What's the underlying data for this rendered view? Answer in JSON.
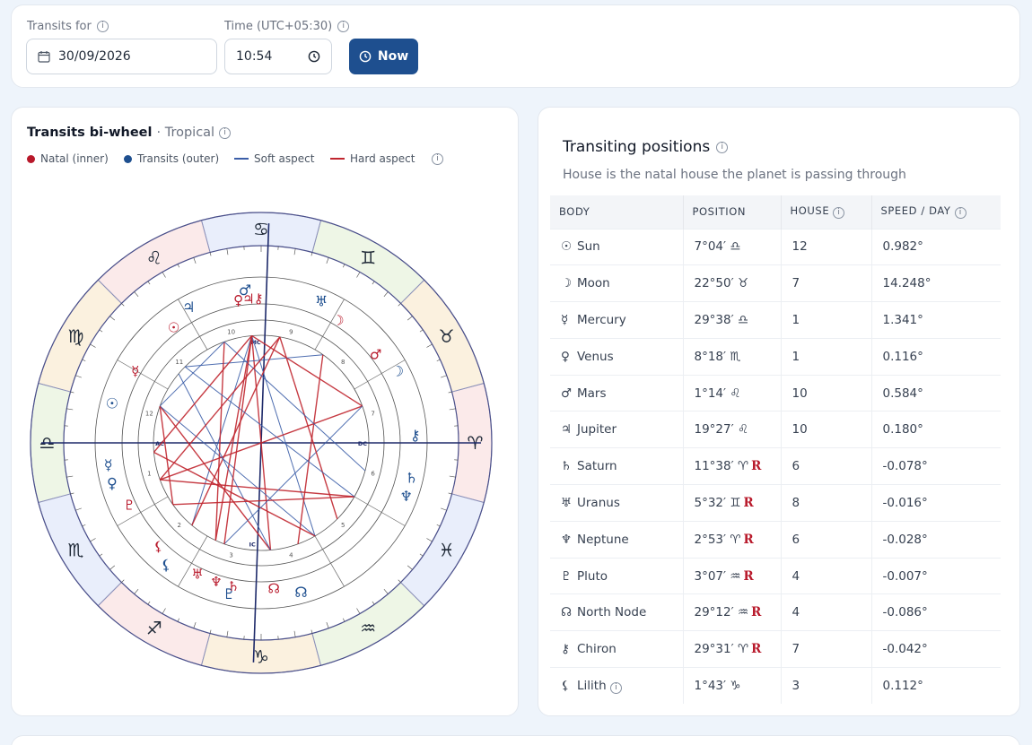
{
  "controls": {
    "transits_label": "Transits for",
    "date_value": "30/09/2026",
    "time_label": "Time (UTC+05:30)",
    "time_value": "10:54",
    "now_label": "Now"
  },
  "chart_panel": {
    "title": "Transits bi-wheel",
    "mode": "· Tropical",
    "legend": {
      "natal": "Natal (inner)",
      "transits": "Transits (outer)",
      "soft": "Soft aspect",
      "hard": "Hard aspect"
    },
    "colors": {
      "natal": "#b8182a",
      "transits": "#1e4f8f",
      "soft": "#3b5ea8",
      "hard": "#c0262f"
    },
    "angles": {
      "ac": "AC",
      "dc": "DC",
      "mc": "MC",
      "ic": "IC"
    },
    "houses": [
      "1",
      "2",
      "3",
      "4",
      "5",
      "6",
      "7",
      "8",
      "9",
      "10",
      "11",
      "12"
    ],
    "signs": [
      "♈",
      "♉",
      "♊",
      "♋",
      "♌",
      "♍",
      "♎",
      "♏",
      "♐",
      "♑",
      "♒",
      "♓"
    ]
  },
  "positions_panel": {
    "title": "Transiting positions",
    "subtitle": "House is the natal house the planet is passing through",
    "columns": [
      "BODY",
      "POSITION",
      "HOUSE",
      "SPEED / DAY"
    ],
    "rows": [
      {
        "icon": "☉",
        "body": "Sun",
        "position": "7°04′ ♎",
        "retro": "",
        "house": "12",
        "speed": "0.982°"
      },
      {
        "icon": "☽",
        "body": "Moon",
        "position": "22°50′ ♉",
        "retro": "",
        "house": "7",
        "speed": "14.248°"
      },
      {
        "icon": "☿",
        "body": "Mercury",
        "position": "29°38′ ♎",
        "retro": "",
        "house": "1",
        "speed": "1.341°"
      },
      {
        "icon": "♀",
        "body": "Venus",
        "position": "8°18′ ♏",
        "retro": "",
        "house": "1",
        "speed": "0.116°"
      },
      {
        "icon": "♂",
        "body": "Mars",
        "position": "1°14′ ♌",
        "retro": "",
        "house": "10",
        "speed": "0.584°"
      },
      {
        "icon": "♃",
        "body": "Jupiter",
        "position": "19°27′ ♌",
        "retro": "",
        "house": "10",
        "speed": "0.180°"
      },
      {
        "icon": "♄",
        "body": "Saturn",
        "position": "11°38′ ♈",
        "retro": "R",
        "house": "6",
        "speed": "-0.078°"
      },
      {
        "icon": "♅",
        "body": "Uranus",
        "position": "5°32′ ♊",
        "retro": "R",
        "house": "8",
        "speed": "-0.016°"
      },
      {
        "icon": "♆",
        "body": "Neptune",
        "position": "2°53′ ♈",
        "retro": "R",
        "house": "6",
        "speed": "-0.028°"
      },
      {
        "icon": "♇",
        "body": "Pluto",
        "position": "3°07′ ♒",
        "retro": "R",
        "house": "4",
        "speed": "-0.007°"
      },
      {
        "icon": "☊",
        "body": "North Node",
        "position": "29°12′ ♒",
        "retro": "R",
        "house": "4",
        "speed": "-0.086°"
      },
      {
        "icon": "⚷",
        "body": "Chiron",
        "position": "29°31′ ♈",
        "retro": "R",
        "house": "7",
        "speed": "-0.042°"
      },
      {
        "icon": "⚸",
        "body": "Lilith",
        "position": "1°43′ ♑",
        "retro": "",
        "house": "3",
        "speed": "0.112°"
      }
    ]
  }
}
